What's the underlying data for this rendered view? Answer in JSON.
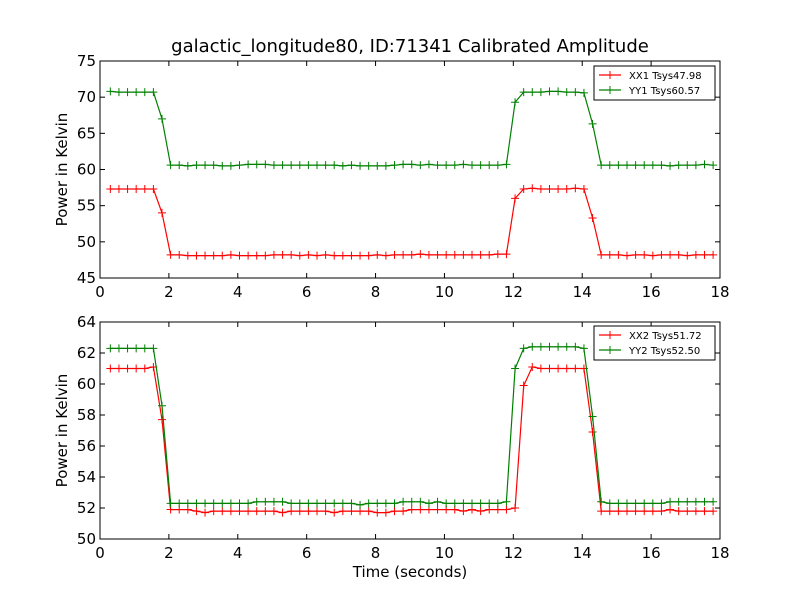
{
  "title": "galactic_longitude80, ID:71341 Calibrated Amplitude",
  "chart_data": [
    {
      "type": "line",
      "ylabel": "Power in Kelvin",
      "xlabel": "",
      "xlim": [
        0,
        18
      ],
      "ylim": [
        45,
        75
      ],
      "xticks": [
        "0",
        "2",
        "4",
        "6",
        "8",
        "10",
        "12",
        "14",
        "16",
        "18"
      ],
      "yticks": [
        "45",
        "50",
        "55",
        "60",
        "65",
        "70",
        "75"
      ],
      "legend_position": "top-right",
      "grid": false,
      "x": [
        0.3,
        0.55,
        0.8,
        1.05,
        1.3,
        1.55,
        1.8,
        2.05,
        2.3,
        2.55,
        2.8,
        3.05,
        3.3,
        3.55,
        3.8,
        4.05,
        4.3,
        4.55,
        4.8,
        5.05,
        5.3,
        5.55,
        5.8,
        6.05,
        6.3,
        6.55,
        6.8,
        7.05,
        7.3,
        7.55,
        7.8,
        8.05,
        8.3,
        8.55,
        8.8,
        9.05,
        9.3,
        9.55,
        9.8,
        10.05,
        10.3,
        10.55,
        10.8,
        11.05,
        11.3,
        11.55,
        11.8,
        12.05,
        12.3,
        12.55,
        12.8,
        13.05,
        13.3,
        13.55,
        13.8,
        14.05,
        14.3,
        14.55,
        14.8,
        15.05,
        15.3,
        15.55,
        15.8,
        16.05,
        16.3,
        16.55,
        16.8,
        17.05,
        17.3,
        17.55,
        17.8
      ],
      "series": [
        {
          "name": "XX1 Tsys47.98",
          "color": "#ff0000",
          "values": [
            57.3,
            57.3,
            57.3,
            57.3,
            57.3,
            57.3,
            54.0,
            48.2,
            48.2,
            48.1,
            48.1,
            48.1,
            48.1,
            48.1,
            48.2,
            48.1,
            48.1,
            48.1,
            48.1,
            48.2,
            48.2,
            48.2,
            48.1,
            48.2,
            48.1,
            48.2,
            48.1,
            48.1,
            48.1,
            48.1,
            48.1,
            48.2,
            48.1,
            48.2,
            48.2,
            48.2,
            48.3,
            48.2,
            48.2,
            48.2,
            48.2,
            48.2,
            48.2,
            48.2,
            48.2,
            48.3,
            48.3,
            56.0,
            57.3,
            57.4,
            57.3,
            57.3,
            57.3,
            57.3,
            57.4,
            57.3,
            53.3,
            48.2,
            48.2,
            48.2,
            48.1,
            48.2,
            48.2,
            48.1,
            48.2,
            48.2,
            48.2,
            48.1,
            48.2,
            48.2,
            48.2
          ]
        },
        {
          "name": "YY1 Tsys60.57",
          "color": "#008000",
          "values": [
            70.8,
            70.7,
            70.7,
            70.7,
            70.7,
            70.7,
            67.0,
            60.6,
            60.6,
            60.5,
            60.6,
            60.6,
            60.6,
            60.5,
            60.5,
            60.6,
            60.7,
            60.7,
            60.7,
            60.6,
            60.6,
            60.6,
            60.6,
            60.6,
            60.6,
            60.6,
            60.6,
            60.5,
            60.6,
            60.5,
            60.5,
            60.5,
            60.5,
            60.6,
            60.7,
            60.7,
            60.6,
            60.7,
            60.6,
            60.6,
            60.6,
            60.7,
            60.6,
            60.6,
            60.6,
            60.6,
            60.7,
            69.3,
            70.7,
            70.7,
            70.7,
            70.8,
            70.8,
            70.7,
            70.7,
            70.6,
            66.3,
            60.6,
            60.6,
            60.6,
            60.6,
            60.6,
            60.6,
            60.6,
            60.6,
            60.5,
            60.6,
            60.6,
            60.6,
            60.7,
            60.6
          ]
        }
      ]
    },
    {
      "type": "line",
      "ylabel": "Power in Kelvin",
      "xlabel": "Time (seconds)",
      "xlim": [
        0,
        18
      ],
      "ylim": [
        50,
        64
      ],
      "xticks": [
        "0",
        "2",
        "4",
        "6",
        "8",
        "10",
        "12",
        "14",
        "16",
        "18"
      ],
      "yticks": [
        "50",
        "52",
        "54",
        "56",
        "58",
        "60",
        "62",
        "64"
      ],
      "legend_position": "top-right",
      "grid": false,
      "x": [
        0.3,
        0.55,
        0.8,
        1.05,
        1.3,
        1.55,
        1.8,
        2.05,
        2.3,
        2.55,
        2.8,
        3.05,
        3.3,
        3.55,
        3.8,
        4.05,
        4.3,
        4.55,
        4.8,
        5.05,
        5.3,
        5.55,
        5.8,
        6.05,
        6.3,
        6.55,
        6.8,
        7.05,
        7.3,
        7.55,
        7.8,
        8.05,
        8.3,
        8.55,
        8.8,
        9.05,
        9.3,
        9.55,
        9.8,
        10.05,
        10.3,
        10.55,
        10.8,
        11.05,
        11.3,
        11.55,
        11.8,
        12.05,
        12.3,
        12.55,
        12.8,
        13.05,
        13.3,
        13.55,
        13.8,
        14.05,
        14.3,
        14.55,
        14.8,
        15.05,
        15.3,
        15.55,
        15.8,
        16.05,
        16.3,
        16.55,
        16.8,
        17.05,
        17.3,
        17.55,
        17.8
      ],
      "series": [
        {
          "name": "XX2 Tsys51.72",
          "color": "#ff0000",
          "values": [
            61.0,
            61.0,
            61.0,
            61.0,
            61.0,
            61.1,
            57.7,
            51.9,
            51.9,
            51.9,
            51.8,
            51.7,
            51.8,
            51.8,
            51.8,
            51.8,
            51.8,
            51.8,
            51.8,
            51.8,
            51.7,
            51.8,
            51.8,
            51.8,
            51.8,
            51.8,
            51.7,
            51.8,
            51.8,
            51.8,
            51.8,
            51.7,
            51.7,
            51.8,
            51.8,
            51.9,
            51.9,
            51.9,
            51.9,
            51.9,
            51.9,
            51.8,
            51.9,
            51.8,
            51.9,
            51.9,
            51.9,
            52.0,
            59.9,
            61.1,
            61.0,
            61.0,
            61.0,
            61.0,
            61.0,
            61.0,
            56.9,
            51.8,
            51.8,
            51.8,
            51.8,
            51.8,
            51.8,
            51.8,
            51.8,
            51.9,
            51.8,
            51.8,
            51.8,
            51.8,
            51.8
          ]
        },
        {
          "name": "YY2 Tsys52.50",
          "color": "#008000",
          "values": [
            62.3,
            62.3,
            62.3,
            62.3,
            62.3,
            62.3,
            58.6,
            52.3,
            52.3,
            52.3,
            52.3,
            52.3,
            52.3,
            52.3,
            52.3,
            52.3,
            52.3,
            52.4,
            52.4,
            52.4,
            52.4,
            52.3,
            52.3,
            52.3,
            52.3,
            52.3,
            52.3,
            52.3,
            52.3,
            52.2,
            52.3,
            52.3,
            52.3,
            52.3,
            52.4,
            52.4,
            52.4,
            52.3,
            52.4,
            52.3,
            52.3,
            52.3,
            52.3,
            52.3,
            52.3,
            52.3,
            52.4,
            61.0,
            62.3,
            62.4,
            62.4,
            62.4,
            62.4,
            62.4,
            62.4,
            62.3,
            57.9,
            52.4,
            52.3,
            52.3,
            52.3,
            52.3,
            52.3,
            52.3,
            52.3,
            52.4,
            52.4,
            52.4,
            52.4,
            52.4,
            52.4
          ]
        }
      ]
    }
  ]
}
